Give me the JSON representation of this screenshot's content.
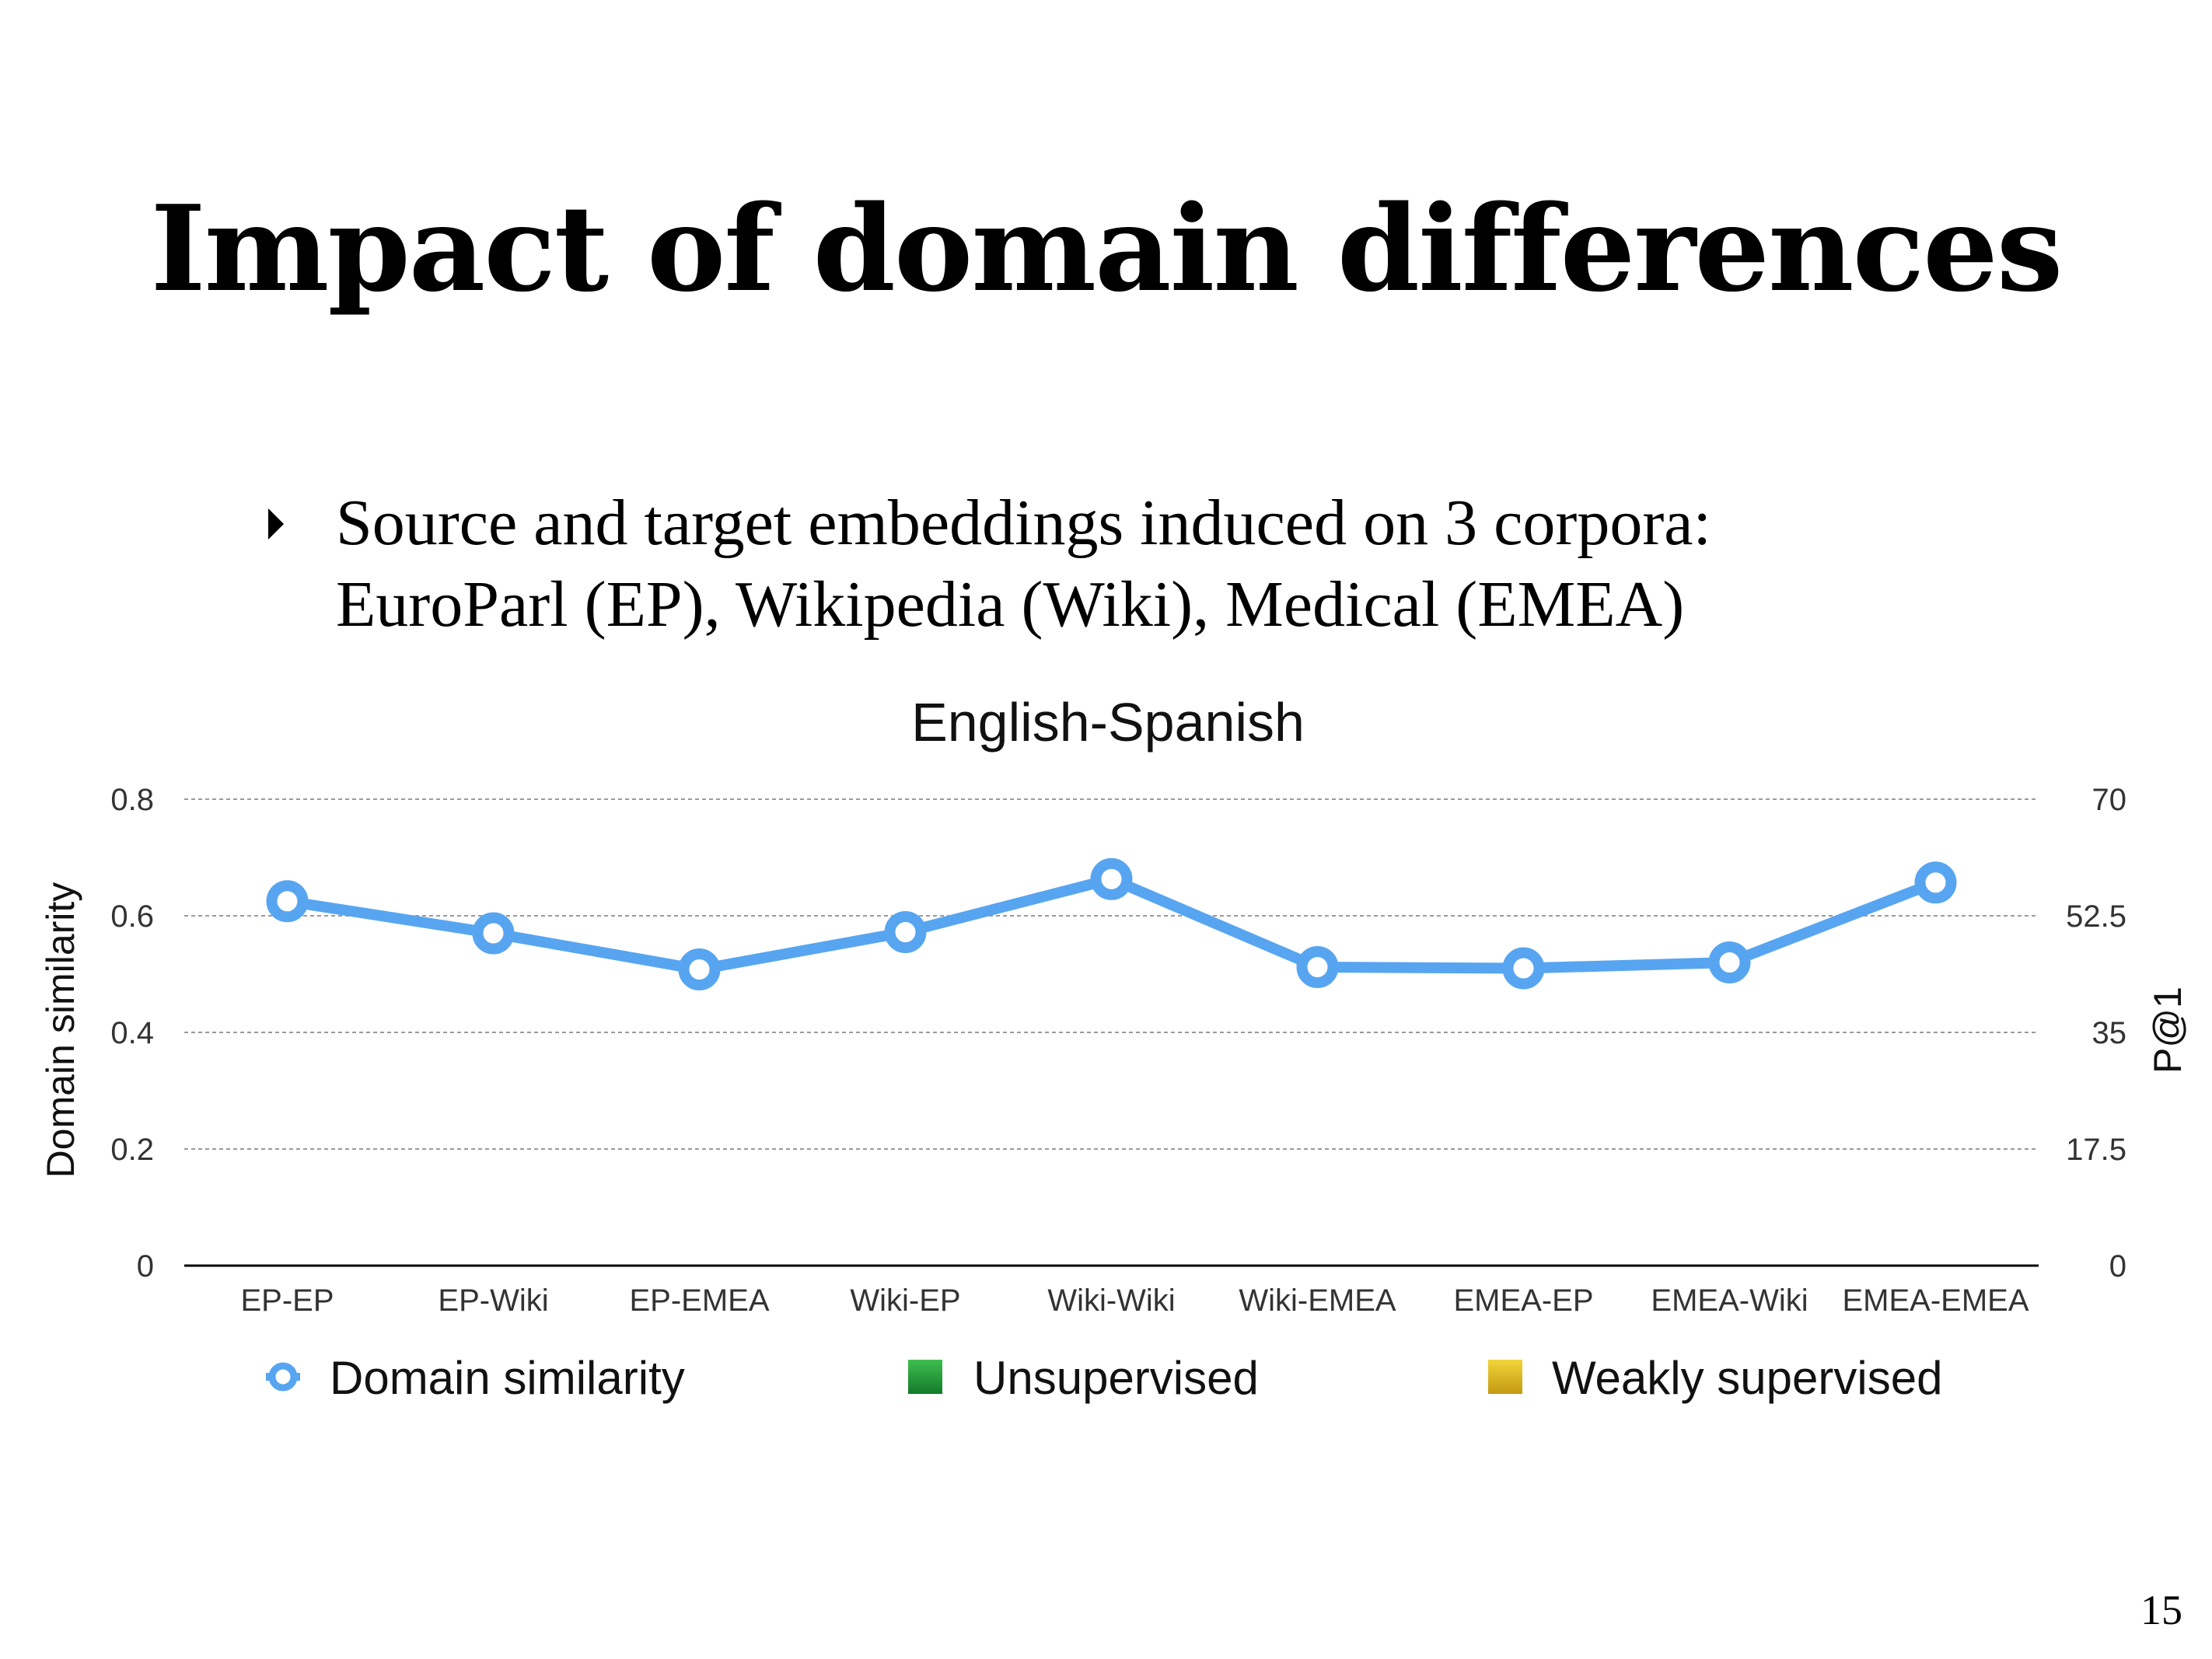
{
  "slide": {
    "title": "Impact of domain differences",
    "bullet_line1": "Source and target embeddings induced on 3 corpora:",
    "bullet_line2": "EuroParl (EP), Wikipedia (Wiki), Medical (EMEA)",
    "page_number": "15"
  },
  "chart_data": {
    "type": "line",
    "title": "English-Spanish",
    "categories": [
      "EP-EP",
      "EP-Wiki",
      "EP-EMEA",
      "Wiki-EP",
      "Wiki-Wiki",
      "Wiki-EMEA",
      "EMEA-EP",
      "EMEA-Wiki",
      "EMEA-EMEA"
    ],
    "series": [
      {
        "name": "Domain similarity",
        "axis": "left",
        "values": [
          0.625,
          0.57,
          0.508,
          0.572,
          0.663,
          0.512,
          0.51,
          0.52,
          0.657
        ]
      }
    ],
    "legend": [
      "Domain similarity",
      "Unsupervised",
      "Weakly supervised"
    ],
    "legend_placement": "bottom",
    "ylabel": "Domain similarity",
    "y2label": "P@1",
    "ylim": [
      0,
      0.8
    ],
    "y2lim": [
      0,
      70
    ],
    "yticks": [
      "0",
      "0.2",
      "0.4",
      "0.6",
      "0.8"
    ],
    "y2ticks": [
      "0",
      "17.5",
      "35",
      "52.5",
      "70"
    ],
    "grid": true,
    "colors": {
      "domain_similarity": "#57a5f0",
      "unsupervised": "#1b9637",
      "weakly_supervised": "#d8b31a"
    }
  }
}
